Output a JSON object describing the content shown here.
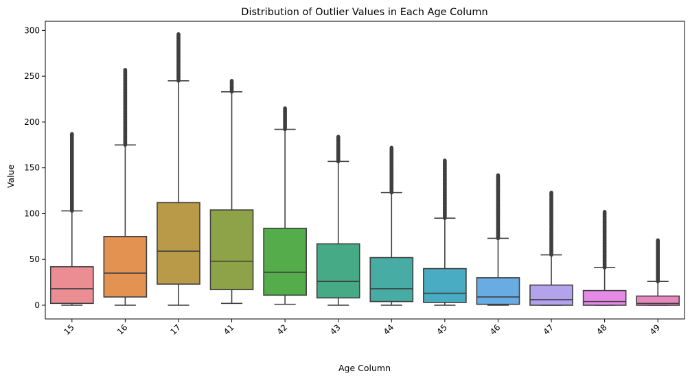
{
  "chart_data": {
    "type": "boxplot",
    "title": "Distribution of Outlier Values in Each Age Column",
    "xlabel": "Age Column",
    "ylabel": "Value",
    "ylim": [
      -15,
      310
    ],
    "yticks": [
      0,
      50,
      100,
      150,
      200,
      250,
      300
    ],
    "grid": false,
    "categories": [
      "15",
      "16",
      "17",
      "41",
      "42",
      "43",
      "44",
      "45",
      "46",
      "47",
      "48",
      "49"
    ],
    "series": [
      {
        "category": "15",
        "color": "#EA8E94",
        "whisker_low": 0,
        "q1": 2,
        "median": 18,
        "q3": 42,
        "whisker_high": 103,
        "outlier_max": 187
      },
      {
        "category": "16",
        "color": "#E39252",
        "whisker_low": 0,
        "q1": 9,
        "median": 35,
        "q3": 75,
        "whisker_high": 175,
        "outlier_max": 257
      },
      {
        "category": "17",
        "color": "#B89A49",
        "whisker_low": 0,
        "q1": 23,
        "median": 59,
        "q3": 112,
        "whisker_high": 245,
        "outlier_max": 296
      },
      {
        "category": "41",
        "color": "#8EA348",
        "whisker_low": 2,
        "q1": 17,
        "median": 48,
        "q3": 104,
        "whisker_high": 233,
        "outlier_max": 245
      },
      {
        "category": "42",
        "color": "#54AD4A",
        "whisker_low": 1,
        "q1": 11,
        "median": 36,
        "q3": 84,
        "whisker_high": 192,
        "outlier_max": 215
      },
      {
        "category": "43",
        "color": "#46AA86",
        "whisker_low": 0,
        "q1": 8,
        "median": 26,
        "q3": 67,
        "whisker_high": 157,
        "outlier_max": 184
      },
      {
        "category": "44",
        "color": "#47ACA4",
        "whisker_low": 0,
        "q1": 4,
        "median": 18,
        "q3": 52,
        "whisker_high": 123,
        "outlier_max": 172
      },
      {
        "category": "45",
        "color": "#49ACC2",
        "whisker_low": 0,
        "q1": 3,
        "median": 13,
        "q3": 40,
        "whisker_high": 95,
        "outlier_max": 158
      },
      {
        "category": "46",
        "color": "#69ABE3",
        "whisker_low": 0,
        "q1": 1,
        "median": 9,
        "q3": 30,
        "whisker_high": 73,
        "outlier_max": 142
      },
      {
        "category": "47",
        "color": "#B3A3EC",
        "whisker_low": 0,
        "q1": 0,
        "median": 6,
        "q3": 22,
        "whisker_high": 55,
        "outlier_max": 123
      },
      {
        "category": "48",
        "color": "#E68AE8",
        "whisker_low": 0,
        "q1": 0,
        "median": 4,
        "q3": 16,
        "whisker_high": 41,
        "outlier_max": 102
      },
      {
        "category": "49",
        "color": "#EA86BE",
        "whisker_low": 0,
        "q1": 0,
        "median": 2,
        "q3": 10,
        "whisker_high": 26,
        "outlier_max": 71
      }
    ]
  }
}
